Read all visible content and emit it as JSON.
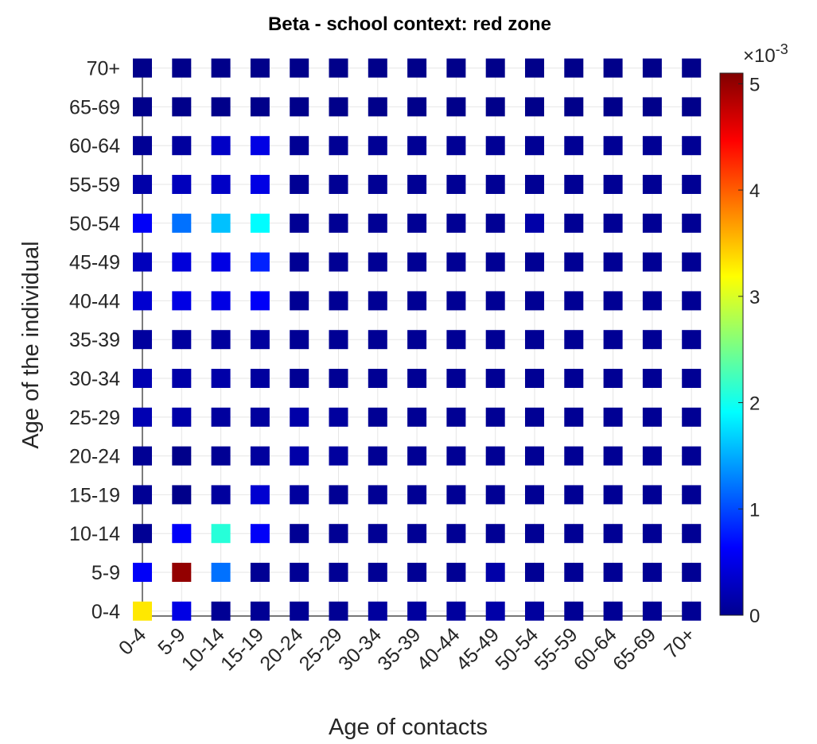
{
  "chart_data": {
    "type": "heatmap",
    "title": "Beta - school context: red zone",
    "xlabel": "Age of contacts",
    "ylabel": "Age of the individual",
    "x_categories": [
      "0-4",
      "5-9",
      "10-14",
      "15-19",
      "20-24",
      "25-29",
      "30-34",
      "35-39",
      "40-44",
      "45-49",
      "50-54",
      "55-59",
      "60-64",
      "65-69",
      "70+"
    ],
    "y_categories": [
      "0-4",
      "5-9",
      "10-14",
      "15-19",
      "20-24",
      "25-29",
      "30-34",
      "35-39",
      "40-44",
      "45-49",
      "50-54",
      "55-59",
      "60-64",
      "65-69",
      "70+"
    ],
    "values_rows_bottom_to_top_x1e-3": [
      [
        3.3,
        0.5,
        0.1,
        0.1,
        0.1,
        0.1,
        0.15,
        0.15,
        0.15,
        0.2,
        0.15,
        0.1,
        0.1,
        0.1,
        0.1
      ],
      [
        0.6,
        5.0,
        1.2,
        0.1,
        0.1,
        0.1,
        0.1,
        0.1,
        0.1,
        0.2,
        0.1,
        0.1,
        0.1,
        0.1,
        0.1
      ],
      [
        0.1,
        0.6,
        2.1,
        0.6,
        0.1,
        0.1,
        0.1,
        0.1,
        0.1,
        0.1,
        0.1,
        0.1,
        0.1,
        0.1,
        0.1
      ],
      [
        0.1,
        0.05,
        0.15,
        0.4,
        0.15,
        0.1,
        0.1,
        0.1,
        0.1,
        0.1,
        0.1,
        0.1,
        0.1,
        0.1,
        0.1
      ],
      [
        0.1,
        0.05,
        0.1,
        0.15,
        0.2,
        0.15,
        0.1,
        0.1,
        0.1,
        0.1,
        0.1,
        0.1,
        0.1,
        0.1,
        0.1
      ],
      [
        0.25,
        0.2,
        0.15,
        0.15,
        0.2,
        0.15,
        0.1,
        0.1,
        0.1,
        0.1,
        0.1,
        0.1,
        0.1,
        0.1,
        0.1
      ],
      [
        0.25,
        0.2,
        0.2,
        0.15,
        0.1,
        0.1,
        0.1,
        0.1,
        0.1,
        0.1,
        0.1,
        0.1,
        0.1,
        0.1,
        0.1
      ],
      [
        0.15,
        0.15,
        0.15,
        0.15,
        0.1,
        0.1,
        0.1,
        0.1,
        0.1,
        0.1,
        0.1,
        0.1,
        0.1,
        0.1,
        0.1
      ],
      [
        0.4,
        0.5,
        0.5,
        0.6,
        0.1,
        0.1,
        0.1,
        0.1,
        0.1,
        0.1,
        0.1,
        0.1,
        0.1,
        0.1,
        0.1
      ],
      [
        0.3,
        0.45,
        0.5,
        0.8,
        0.1,
        0.1,
        0.1,
        0.1,
        0.1,
        0.1,
        0.1,
        0.1,
        0.1,
        0.1,
        0.1
      ],
      [
        0.6,
        1.2,
        1.6,
        1.9,
        0.1,
        0.1,
        0.1,
        0.1,
        0.1,
        0.1,
        0.2,
        0.1,
        0.1,
        0.1,
        0.1
      ],
      [
        0.2,
        0.3,
        0.35,
        0.5,
        0.1,
        0.1,
        0.1,
        0.1,
        0.1,
        0.1,
        0.1,
        0.1,
        0.1,
        0.1,
        0.1
      ],
      [
        0.1,
        0.15,
        0.35,
        0.5,
        0.1,
        0.1,
        0.1,
        0.1,
        0.1,
        0.1,
        0.1,
        0.1,
        0.1,
        0.1,
        0.1
      ],
      [
        0.05,
        0.05,
        0.05,
        0.05,
        0.05,
        0.05,
        0.05,
        0.05,
        0.05,
        0.05,
        0.05,
        0.05,
        0.05,
        0.05,
        0.05
      ],
      [
        0.05,
        0.05,
        0.05,
        0.05,
        0.05,
        0.05,
        0.05,
        0.05,
        0.05,
        0.05,
        0.05,
        0.05,
        0.05,
        0.05,
        0.05
      ]
    ],
    "colorbar": {
      "colormap": "jet",
      "min": 0,
      "max": 5.1,
      "ticks": [
        "0",
        "1",
        "2",
        "3",
        "4",
        "5"
      ],
      "tick_values": [
        0,
        1,
        2,
        3,
        4,
        5
      ],
      "multiplier": "×10",
      "exponent": "-3"
    },
    "grid": true,
    "marker": "square"
  }
}
